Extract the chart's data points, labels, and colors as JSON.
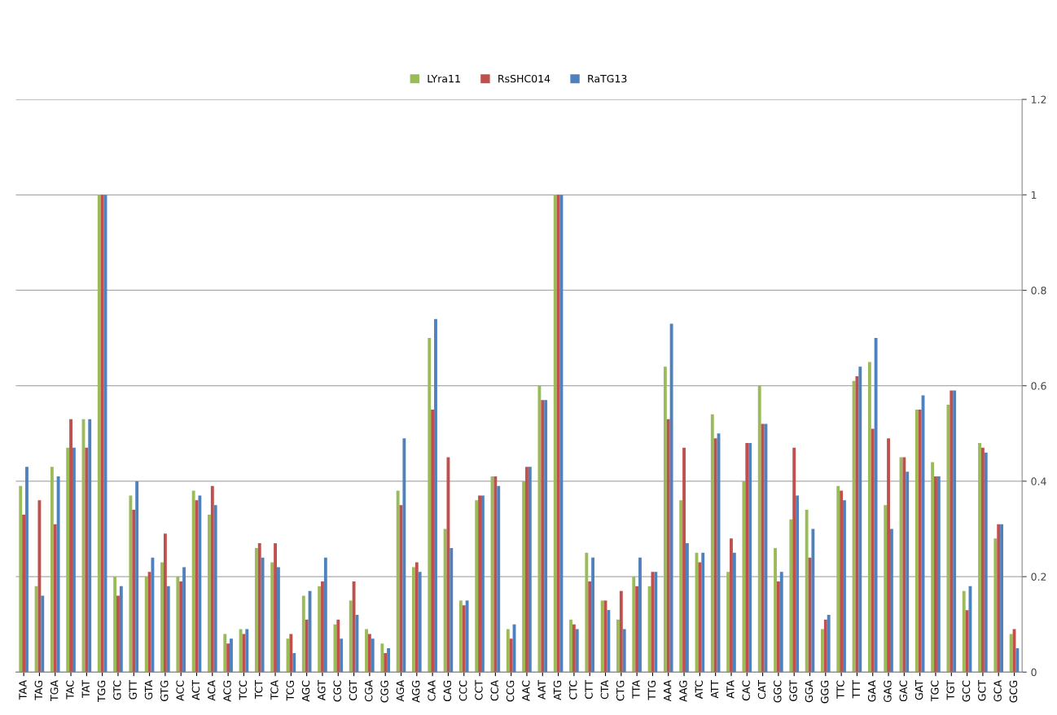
{
  "chart_data": {
    "type": "bar",
    "categories": [
      "TAA",
      "TAG",
      "TGA",
      "TAC",
      "TAT",
      "TGG",
      "GTC",
      "GTT",
      "GTA",
      "GTG",
      "ACC",
      "ACT",
      "ACA",
      "ACG",
      "TCC",
      "TCT",
      "TCA",
      "TCG",
      "AGC",
      "AGT",
      "CGC",
      "CGT",
      "CGA",
      "CGG",
      "AGA",
      "AGG",
      "CAA",
      "CAG",
      "CCC",
      "CCT",
      "CCA",
      "CCG",
      "AAC",
      "AAT",
      "ATG",
      "CTC",
      "CTT",
      "CTA",
      "CTG",
      "TTA",
      "TTG",
      "AAA",
      "AAG",
      "ATC",
      "ATT",
      "ATA",
      "CAC",
      "CAT",
      "GGC",
      "GGT",
      "GGA",
      "GGG",
      "TTC",
      "TTT",
      "GAA",
      "GAG",
      "GAC",
      "GAT",
      "TGC",
      "TGT",
      "GCC",
      "GCT",
      "GCA",
      "GCG"
    ],
    "series": [
      {
        "name": "LYra11",
        "color": "#9bbb59",
        "values": [
          0.39,
          0.18,
          0.43,
          0.47,
          0.53,
          1,
          0.2,
          0.37,
          0.2,
          0.23,
          0.2,
          0.38,
          0.33,
          0.08,
          0.09,
          0.26,
          0.23,
          0.07,
          0.16,
          0.18,
          0.1,
          0.15,
          0.09,
          0.06,
          0.38,
          0.22,
          0.7,
          0.3,
          0.15,
          0.36,
          0.41,
          0.09,
          0.4,
          0.6,
          1,
          0.11,
          0.25,
          0.15,
          0.11,
          0.2,
          0.18,
          0.64,
          0.36,
          0.25,
          0.54,
          0.21,
          0.4,
          0.6,
          0.26,
          0.32,
          0.34,
          0.09,
          0.39,
          0.61,
          0.65,
          0.35,
          0.45,
          0.55,
          0.44,
          0.56,
          0.17,
          0.48,
          0.28,
          0.08
        ]
      },
      {
        "name": "RsSHC014",
        "color": "#c0504d",
        "values": [
          0.33,
          0.36,
          0.31,
          0.53,
          0.47,
          1,
          0.16,
          0.34,
          0.21,
          0.29,
          0.19,
          0.36,
          0.39,
          0.06,
          0.08,
          0.27,
          0.27,
          0.08,
          0.11,
          0.19,
          0.11,
          0.19,
          0.08,
          0.04,
          0.35,
          0.23,
          0.55,
          0.45,
          0.14,
          0.37,
          0.41,
          0.07,
          0.43,
          0.57,
          1,
          0.1,
          0.19,
          0.15,
          0.17,
          0.18,
          0.21,
          0.53,
          0.47,
          0.23,
          0.49,
          0.28,
          0.48,
          0.52,
          0.19,
          0.47,
          0.24,
          0.11,
          0.38,
          0.62,
          0.51,
          0.49,
          0.45,
          0.55,
          0.41,
          0.59,
          0.13,
          0.47,
          0.31,
          0.09
        ]
      },
      {
        "name": "RaTG13",
        "color": "#4f81bd",
        "values": [
          0.43,
          0.16,
          0.41,
          0.47,
          0.53,
          1,
          0.18,
          0.4,
          0.24,
          0.18,
          0.22,
          0.37,
          0.35,
          0.07,
          0.09,
          0.24,
          0.22,
          0.04,
          0.17,
          0.24,
          0.07,
          0.12,
          0.07,
          0.05,
          0.49,
          0.21,
          0.74,
          0.26,
          0.15,
          0.37,
          0.39,
          0.1,
          0.43,
          0.57,
          1,
          0.09,
          0.24,
          0.13,
          0.09,
          0.24,
          0.21,
          0.73,
          0.27,
          0.25,
          0.5,
          0.25,
          0.48,
          0.52,
          0.21,
          0.37,
          0.3,
          0.12,
          0.36,
          0.64,
          0.7,
          0.3,
          0.42,
          0.58,
          0.41,
          0.59,
          0.18,
          0.46,
          0.31,
          0.05
        ]
      }
    ],
    "ylim": [
      0,
      1.2
    ],
    "yticks": [
      0,
      0.2,
      0.4,
      0.6,
      0.8,
      1,
      1.2
    ],
    "grid": "y",
    "legend": "top"
  }
}
